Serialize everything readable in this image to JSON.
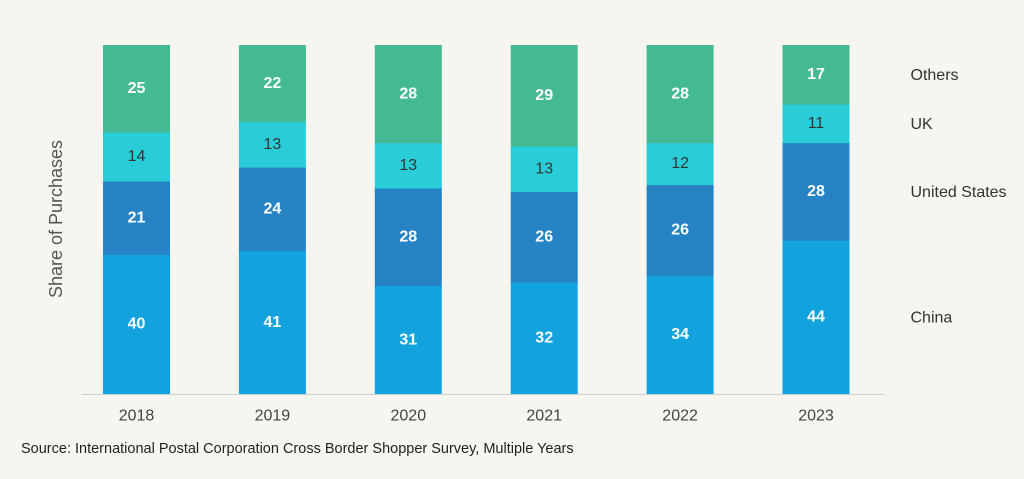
{
  "chart_data": {
    "type": "bar",
    "stacked": true,
    "orientation": "vertical",
    "categories": [
      "2018",
      "2019",
      "2020",
      "2021",
      "2022",
      "2023"
    ],
    "series": [
      {
        "name": "China",
        "values": [
          40,
          41,
          31,
          32,
          34,
          44
        ],
        "color": "#12a3df",
        "label_color": "#ffffff",
        "label_weight": "bold"
      },
      {
        "name": "United States",
        "values": [
          21,
          24,
          28,
          26,
          26,
          28
        ],
        "color": "#2784c4",
        "label_color": "#ffffff",
        "label_weight": "bold"
      },
      {
        "name": "UK",
        "values": [
          14,
          13,
          13,
          13,
          12,
          11
        ],
        "color": "#29cdd8",
        "label_color": "#333333",
        "label_weight": "normal"
      },
      {
        "name": "Others",
        "values": [
          25,
          22,
          28,
          29,
          28,
          17
        ],
        "color": "#45b994",
        "label_color": "#ffffff",
        "label_weight": "bold"
      }
    ],
    "ylabel": "Share of Purchases",
    "xlabel": "",
    "ylim": [
      0,
      100
    ],
    "grid": false,
    "legend": "right, inline labels"
  },
  "source_note": "Source: International Postal Corporation Cross Border Shopper Survey, Multiple Years"
}
